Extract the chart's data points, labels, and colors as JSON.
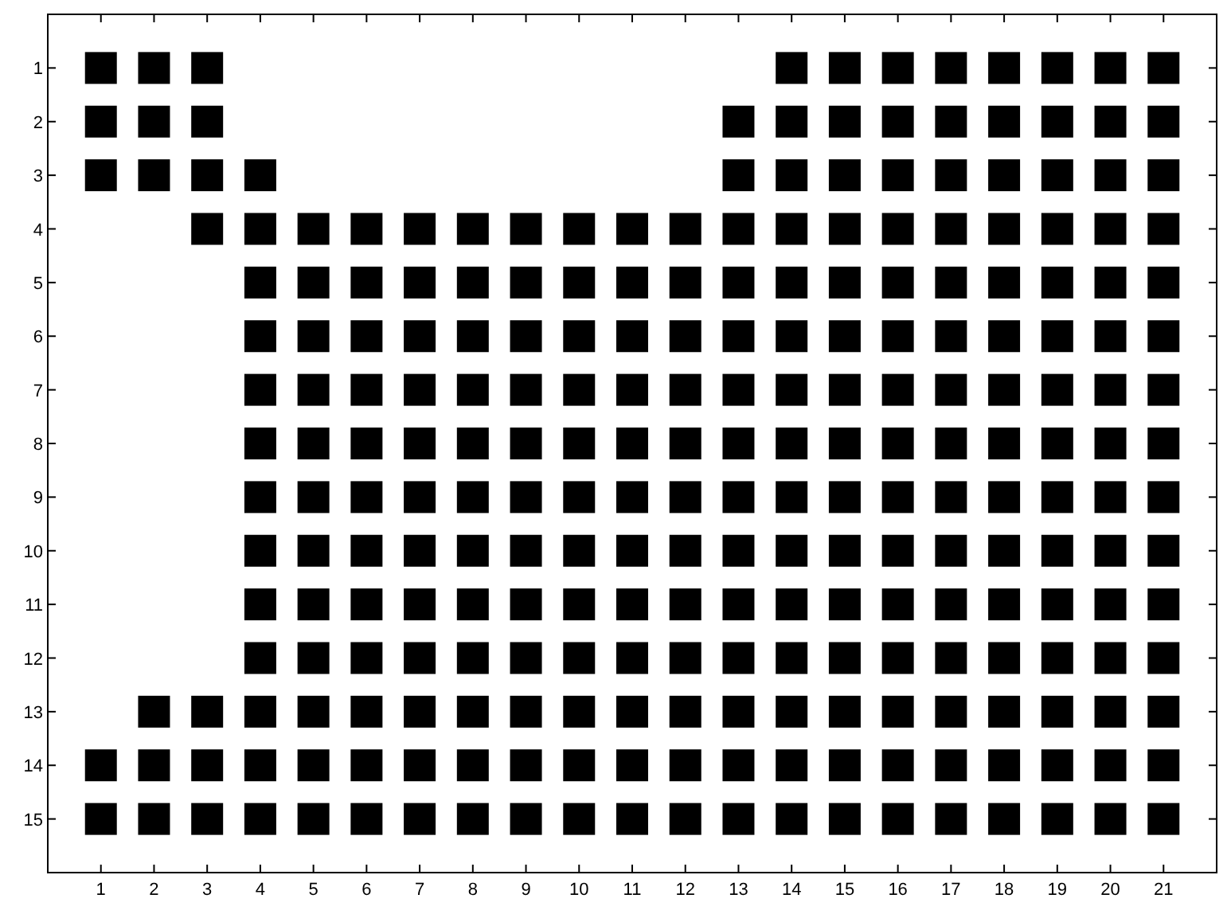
{
  "chart_data": {
    "type": "scatter",
    "marker": "square",
    "xlim": [
      0,
      22
    ],
    "ylim": [
      16,
      0
    ],
    "xticks": [
      1,
      2,
      3,
      4,
      5,
      6,
      7,
      8,
      9,
      10,
      11,
      12,
      13,
      14,
      15,
      16,
      17,
      18,
      19,
      20,
      21
    ],
    "yticks": [
      1,
      2,
      3,
      4,
      5,
      6,
      7,
      8,
      9,
      10,
      11,
      12,
      13,
      14,
      15
    ],
    "series": [
      {
        "color": "#000000",
        "x": [
          1,
          2,
          3,
          14,
          15,
          16,
          17,
          18,
          19,
          20,
          21
        ],
        "values": [
          1,
          1,
          1,
          1,
          1,
          1,
          1,
          1,
          1,
          1,
          1
        ]
      },
      {
        "color": "#000000",
        "x": [
          1,
          2,
          3,
          13,
          14,
          15,
          16,
          17,
          18,
          19,
          20,
          21
        ],
        "values": [
          2,
          2,
          2,
          2,
          2,
          2,
          2,
          2,
          2,
          2,
          2,
          2
        ]
      },
      {
        "color": "#000000",
        "x": [
          1,
          2,
          3,
          4,
          13,
          14,
          15,
          16,
          17,
          18,
          19,
          20,
          21
        ],
        "values": [
          3,
          3,
          3,
          3,
          3,
          3,
          3,
          3,
          3,
          3,
          3,
          3,
          3
        ]
      },
      {
        "color": "#000000",
        "x": [
          3,
          4,
          5,
          6,
          7,
          8,
          9,
          10,
          11,
          12,
          13,
          14,
          15,
          16,
          17,
          18,
          19,
          20,
          21
        ],
        "values": [
          4,
          4,
          4,
          4,
          4,
          4,
          4,
          4,
          4,
          4,
          4,
          4,
          4,
          4,
          4,
          4,
          4,
          4,
          4
        ]
      },
      {
        "color": "#000000",
        "x": [
          4,
          5,
          6,
          7,
          8,
          9,
          10,
          11,
          12,
          13,
          14,
          15,
          16,
          17,
          18,
          19,
          20,
          21
        ],
        "values": [
          5,
          5,
          5,
          5,
          5,
          5,
          5,
          5,
          5,
          5,
          5,
          5,
          5,
          5,
          5,
          5,
          5,
          5
        ]
      },
      {
        "color": "#000000",
        "x": [
          4,
          5,
          6,
          7,
          8,
          9,
          10,
          11,
          12,
          13,
          14,
          15,
          16,
          17,
          18,
          19,
          20,
          21
        ],
        "values": [
          6,
          6,
          6,
          6,
          6,
          6,
          6,
          6,
          6,
          6,
          6,
          6,
          6,
          6,
          6,
          6,
          6,
          6
        ]
      },
      {
        "color": "#000000",
        "x": [
          4,
          5,
          6,
          7,
          8,
          9,
          10,
          11,
          12,
          13,
          14,
          15,
          16,
          17,
          18,
          19,
          20,
          21
        ],
        "values": [
          7,
          7,
          7,
          7,
          7,
          7,
          7,
          7,
          7,
          7,
          7,
          7,
          7,
          7,
          7,
          7,
          7,
          7
        ]
      },
      {
        "color": "#000000",
        "x": [
          4,
          5,
          6,
          7,
          8,
          9,
          10,
          11,
          12,
          13,
          14,
          15,
          16,
          17,
          18,
          19,
          20,
          21
        ],
        "values": [
          8,
          8,
          8,
          8,
          8,
          8,
          8,
          8,
          8,
          8,
          8,
          8,
          8,
          8,
          8,
          8,
          8,
          8
        ]
      },
      {
        "color": "#000000",
        "x": [
          4,
          5,
          6,
          7,
          8,
          9,
          10,
          11,
          12,
          13,
          14,
          15,
          16,
          17,
          18,
          19,
          20,
          21
        ],
        "values": [
          9,
          9,
          9,
          9,
          9,
          9,
          9,
          9,
          9,
          9,
          9,
          9,
          9,
          9,
          9,
          9,
          9,
          9
        ]
      },
      {
        "color": "#000000",
        "x": [
          4,
          5,
          6,
          7,
          8,
          9,
          10,
          11,
          12,
          13,
          14,
          15,
          16,
          17,
          18,
          19,
          20,
          21
        ],
        "values": [
          10,
          10,
          10,
          10,
          10,
          10,
          10,
          10,
          10,
          10,
          10,
          10,
          10,
          10,
          10,
          10,
          10,
          10
        ]
      },
      {
        "color": "#000000",
        "x": [
          4,
          5,
          6,
          7,
          8,
          9,
          10,
          11,
          12,
          13,
          14,
          15,
          16,
          17,
          18,
          19,
          20,
          21
        ],
        "values": [
          11,
          11,
          11,
          11,
          11,
          11,
          11,
          11,
          11,
          11,
          11,
          11,
          11,
          11,
          11,
          11,
          11,
          11
        ]
      },
      {
        "color": "#000000",
        "x": [
          4,
          5,
          6,
          7,
          8,
          9,
          10,
          11,
          12,
          13,
          14,
          15,
          16,
          17,
          18,
          19,
          20,
          21
        ],
        "values": [
          12,
          12,
          12,
          12,
          12,
          12,
          12,
          12,
          12,
          12,
          12,
          12,
          12,
          12,
          12,
          12,
          12,
          12
        ]
      },
      {
        "color": "#000000",
        "x": [
          2,
          3,
          4,
          5,
          6,
          7,
          8,
          9,
          10,
          11,
          12,
          13,
          14,
          15,
          16,
          17,
          18,
          19,
          20,
          21
        ],
        "values": [
          13,
          13,
          13,
          13,
          13,
          13,
          13,
          13,
          13,
          13,
          13,
          13,
          13,
          13,
          13,
          13,
          13,
          13,
          13,
          13
        ]
      },
      {
        "color": "#000000",
        "x": [
          1,
          2,
          3,
          4,
          5,
          6,
          7,
          8,
          9,
          10,
          11,
          12,
          13,
          14,
          15,
          16,
          17,
          18,
          19,
          20,
          21
        ],
        "values": [
          14,
          14,
          14,
          14,
          14,
          14,
          14,
          14,
          14,
          14,
          14,
          14,
          14,
          14,
          14,
          14,
          14,
          14,
          14,
          14,
          14
        ]
      },
      {
        "color": "#000000",
        "x": [
          1,
          2,
          3,
          4,
          5,
          6,
          7,
          8,
          9,
          10,
          11,
          12,
          13,
          14,
          15,
          16,
          17,
          18,
          19,
          20,
          21
        ],
        "values": [
          15,
          15,
          15,
          15,
          15,
          15,
          15,
          15,
          15,
          15,
          15,
          15,
          15,
          15,
          15,
          15,
          15,
          15,
          15,
          15,
          15
        ]
      }
    ]
  }
}
